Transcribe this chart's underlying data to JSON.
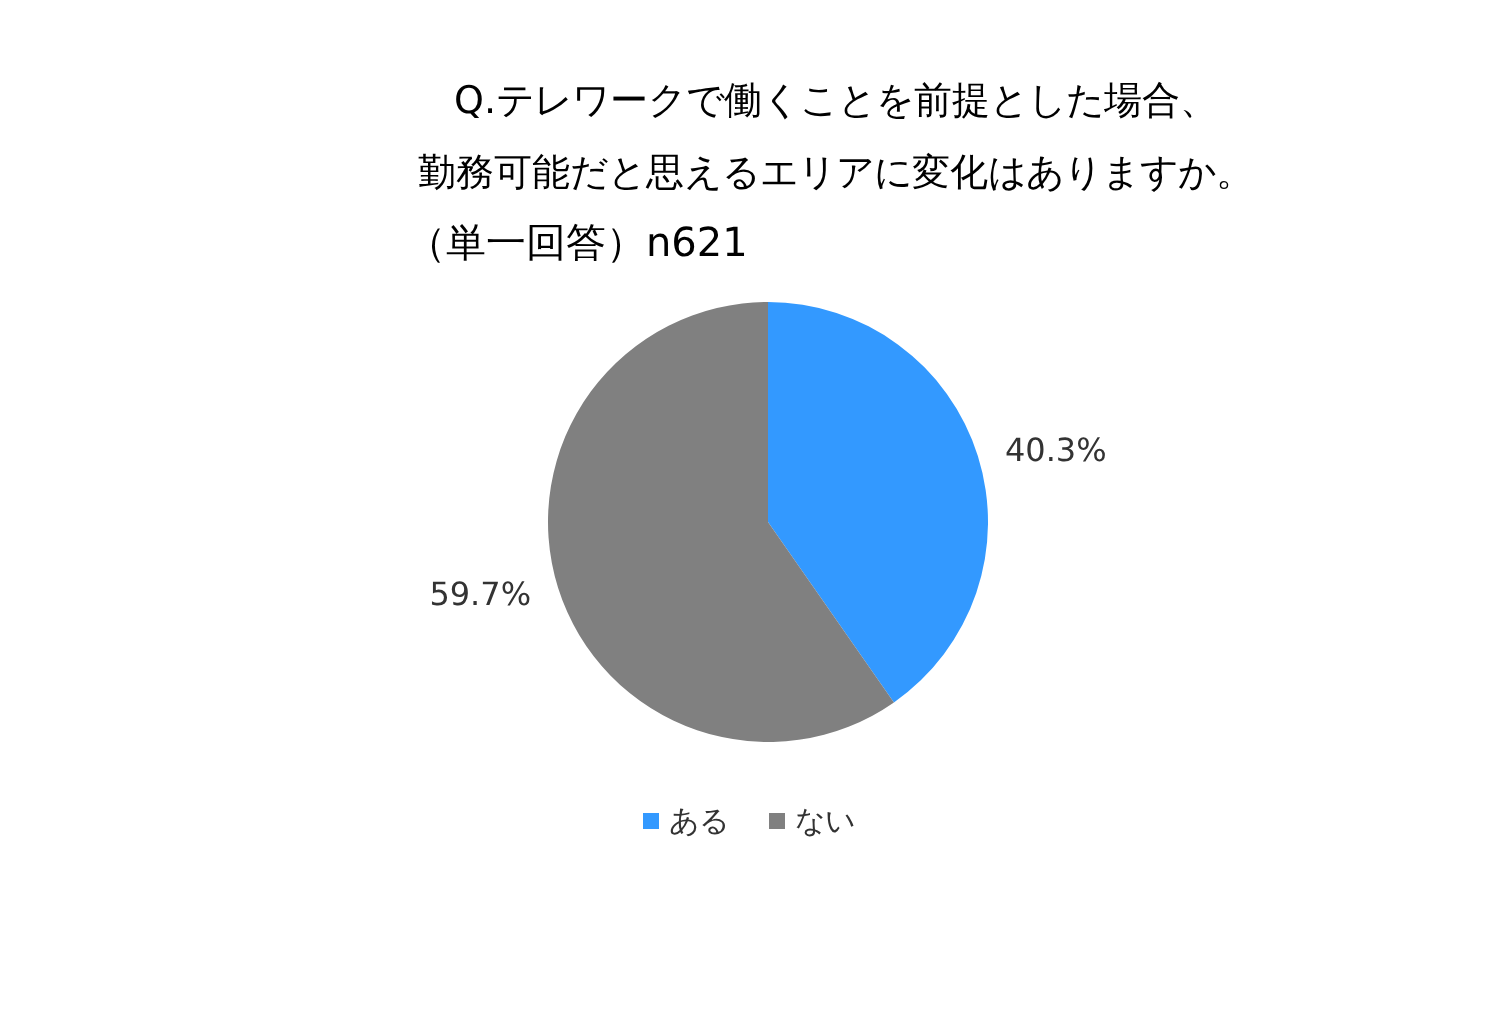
{
  "chart_data": {
    "type": "pie",
    "title": "Q.テレワークで働くことを前提とした場合、",
    "subtitle": "勤務可能だと思えるエリアに変化はありますか。",
    "annotations": [
      "（単一回答）n621"
    ],
    "categories": [
      "ある",
      "ない"
    ],
    "values": [
      40.3,
      59.7
    ],
    "colors": [
      "#3399ff",
      "#808080"
    ],
    "value_labels": [
      "40.3%",
      "59.7%"
    ],
    "legend": "bottom"
  }
}
